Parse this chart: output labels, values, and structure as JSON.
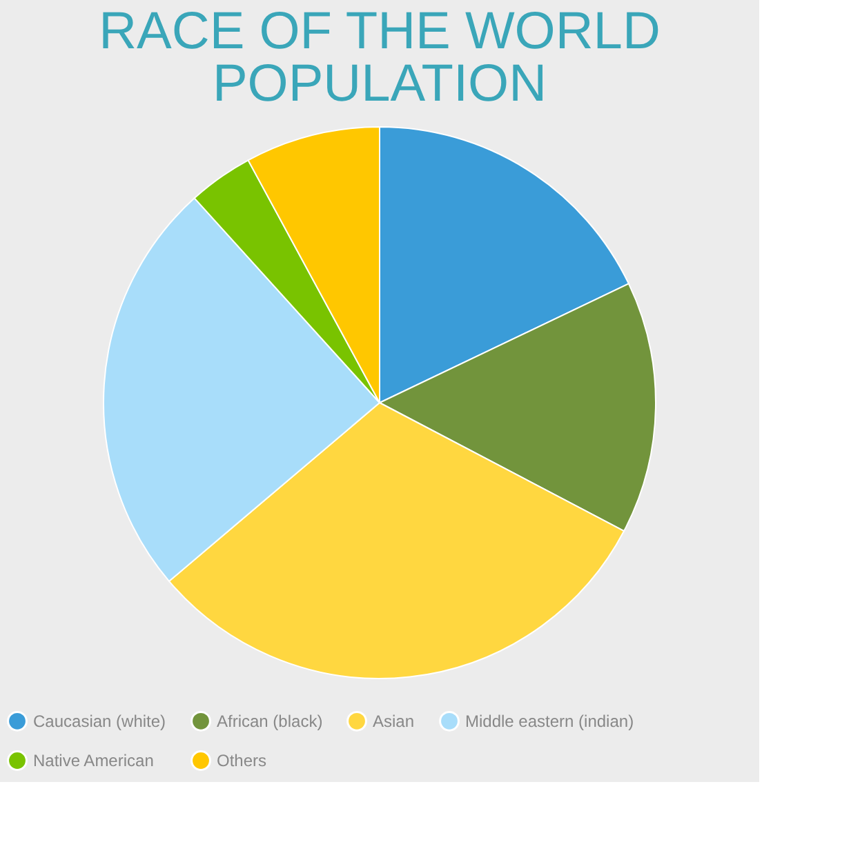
{
  "chart_data": {
    "type": "pie",
    "title": "RACE OF THE WORLD POPULATION",
    "categories": [
      "Caucasian (white)",
      "African (black)",
      "Asian",
      "Middle eastern (indian)",
      "Native American",
      "Others"
    ],
    "values": [
      17.9,
      14.8,
      31.1,
      24.5,
      3.8,
      7.9
    ],
    "colors": [
      "#3a9cd8",
      "#72943c",
      "#ffd740",
      "#a8ddfa",
      "#79c300",
      "#ffc700"
    ],
    "legend": "bottom"
  }
}
